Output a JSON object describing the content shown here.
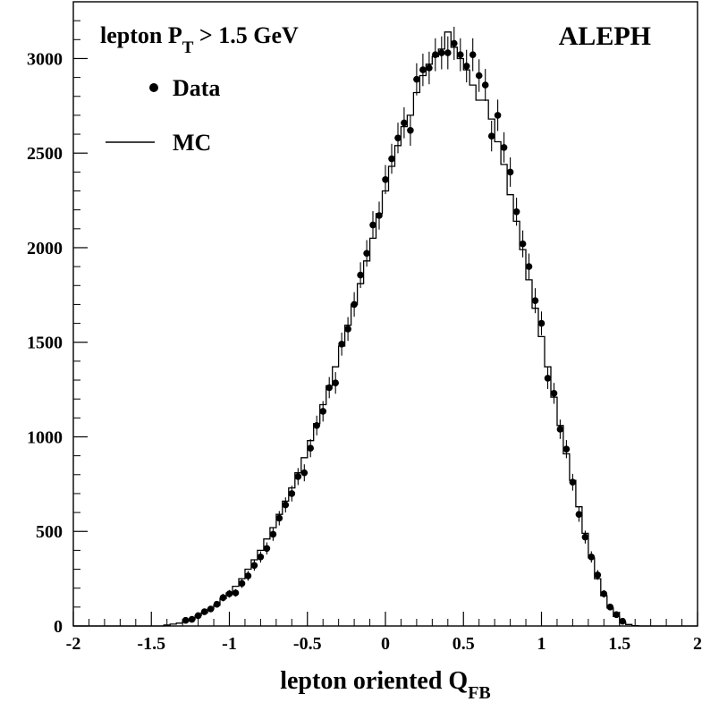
{
  "chart_data": {
    "type": "scatter",
    "title": "",
    "xlabel": "lepton oriented Q",
    "xlabel_sub": "FB",
    "ylabel": "",
    "xlim": [
      -2,
      2
    ],
    "ylim": [
      0,
      3300
    ],
    "x_ticks": [
      -2,
      -1.5,
      -1,
      -0.5,
      0,
      0.5,
      1,
      1.5,
      2
    ],
    "x_tick_labels": [
      "-2",
      "-1.5",
      "-1",
      "-0.5",
      "0",
      "0.5",
      "1",
      "1.5",
      "2"
    ],
    "y_ticks": [
      0,
      500,
      1000,
      1500,
      2000,
      2500,
      3000
    ],
    "y_tick_labels": [
      "0",
      "500",
      "1000",
      "1500",
      "2000",
      "2500",
      "3000"
    ],
    "bin_width": 0.04,
    "annotations": {
      "cut": {
        "prefix": "lepton P",
        "sub": "T",
        "suffix": " > 1.5 GeV"
      },
      "experiment": "ALEPH"
    },
    "legend": {
      "placement": "top-left",
      "entries": [
        {
          "name": "Data",
          "style": "marker"
        },
        {
          "name": "MC",
          "style": "line"
        }
      ]
    },
    "series": [
      {
        "name": "Data",
        "style": "points-with-error-bars",
        "x": [
          -1.28,
          -1.24,
          -1.2,
          -1.16,
          -1.12,
          -1.08,
          -1.04,
          -1.0,
          -0.96,
          -0.92,
          -0.88,
          -0.84,
          -0.8,
          -0.76,
          -0.72,
          -0.68,
          -0.64,
          -0.6,
          -0.56,
          -0.52,
          -0.48,
          -0.44,
          -0.4,
          -0.36,
          -0.32,
          -0.28,
          -0.24,
          -0.2,
          -0.16,
          -0.12,
          -0.08,
          -0.04,
          0.0,
          0.04,
          0.08,
          0.12,
          0.16,
          0.2,
          0.24,
          0.28,
          0.32,
          0.36,
          0.4,
          0.44,
          0.48,
          0.52,
          0.56,
          0.6,
          0.64,
          0.68,
          0.72,
          0.76,
          0.8,
          0.84,
          0.88,
          0.92,
          0.96,
          1.0,
          1.04,
          1.08,
          1.12,
          1.16,
          1.2,
          1.24,
          1.28,
          1.32,
          1.36,
          1.4,
          1.44,
          1.48,
          1.52
        ],
        "y": [
          30,
          35,
          55,
          75,
          90,
          115,
          150,
          170,
          175,
          225,
          265,
          320,
          365,
          410,
          485,
          570,
          640,
          700,
          790,
          810,
          940,
          1060,
          1135,
          1260,
          1285,
          1490,
          1570,
          1700,
          1855,
          1970,
          2120,
          2170,
          2360,
          2470,
          2580,
          2660,
          2620,
          2890,
          2940,
          2950,
          3020,
          3030,
          3030,
          3080,
          3020,
          2960,
          3020,
          2910,
          2860,
          2590,
          2700,
          2530,
          2400,
          2190,
          2020,
          1900,
          1720,
          1600,
          1310,
          1230,
          1040,
          935,
          760,
          590,
          470,
          365,
          270,
          170,
          100,
          60,
          25
        ],
        "err": [
          10,
          10,
          12,
          14,
          15,
          17,
          20,
          20,
          20,
          24,
          26,
          28,
          30,
          32,
          35,
          38,
          40,
          42,
          45,
          45,
          48,
          52,
          54,
          56,
          57,
          61,
          63,
          65,
          68,
          70,
          73,
          74,
          77,
          79,
          81,
          82,
          81,
          85,
          86,
          86,
          87,
          87,
          87,
          88,
          87,
          86,
          87,
          86,
          85,
          81,
          83,
          80,
          78,
          74,
          71,
          69,
          66,
          63,
          57,
          55,
          51,
          48,
          44,
          39,
          34,
          30,
          26,
          20,
          15,
          12,
          8
        ]
      },
      {
        "name": "MC",
        "style": "histogram-step",
        "edges": [
          -1.42,
          -1.38,
          -1.34,
          -1.3,
          -1.26,
          -1.22,
          -1.18,
          -1.14,
          -1.1,
          -1.06,
          -1.02,
          -0.98,
          -0.94,
          -0.9,
          -0.86,
          -0.82,
          -0.78,
          -0.74,
          -0.7,
          -0.66,
          -0.62,
          -0.58,
          -0.54,
          -0.5,
          -0.46,
          -0.42,
          -0.38,
          -0.34,
          -0.3,
          -0.26,
          -0.22,
          -0.18,
          -0.14,
          -0.1,
          -0.06,
          -0.02,
          0.02,
          0.06,
          0.1,
          0.14,
          0.18,
          0.22,
          0.26,
          0.3,
          0.34,
          0.38,
          0.42,
          0.46,
          0.5,
          0.54,
          0.58,
          0.62,
          0.66,
          0.7,
          0.74,
          0.78,
          0.82,
          0.86,
          0.9,
          0.94,
          0.98,
          1.02,
          1.06,
          1.1,
          1.14,
          1.18,
          1.22,
          1.26,
          1.3,
          1.34,
          1.38,
          1.42,
          1.46,
          1.5,
          1.54,
          1.58,
          1.62
        ],
        "values": [
          5,
          10,
          15,
          25,
          35,
          55,
          70,
          90,
          110,
          145,
          175,
          210,
          250,
          300,
          350,
          400,
          460,
          520,
          590,
          660,
          730,
          810,
          890,
          980,
          1070,
          1170,
          1270,
          1370,
          1480,
          1590,
          1700,
          1810,
          1930,
          2050,
          2180,
          2300,
          2430,
          2540,
          2640,
          2700,
          2820,
          2910,
          2970,
          3010,
          3050,
          3140,
          3060,
          3000,
          2940,
          2860,
          2780,
          2780,
          2680,
          2560,
          2440,
          2280,
          2140,
          1990,
          1830,
          1680,
          1530,
          1370,
          1210,
          1060,
          910,
          770,
          630,
          490,
          360,
          250,
          160,
          95,
          50,
          20,
          8,
          2
        ]
      }
    ]
  }
}
